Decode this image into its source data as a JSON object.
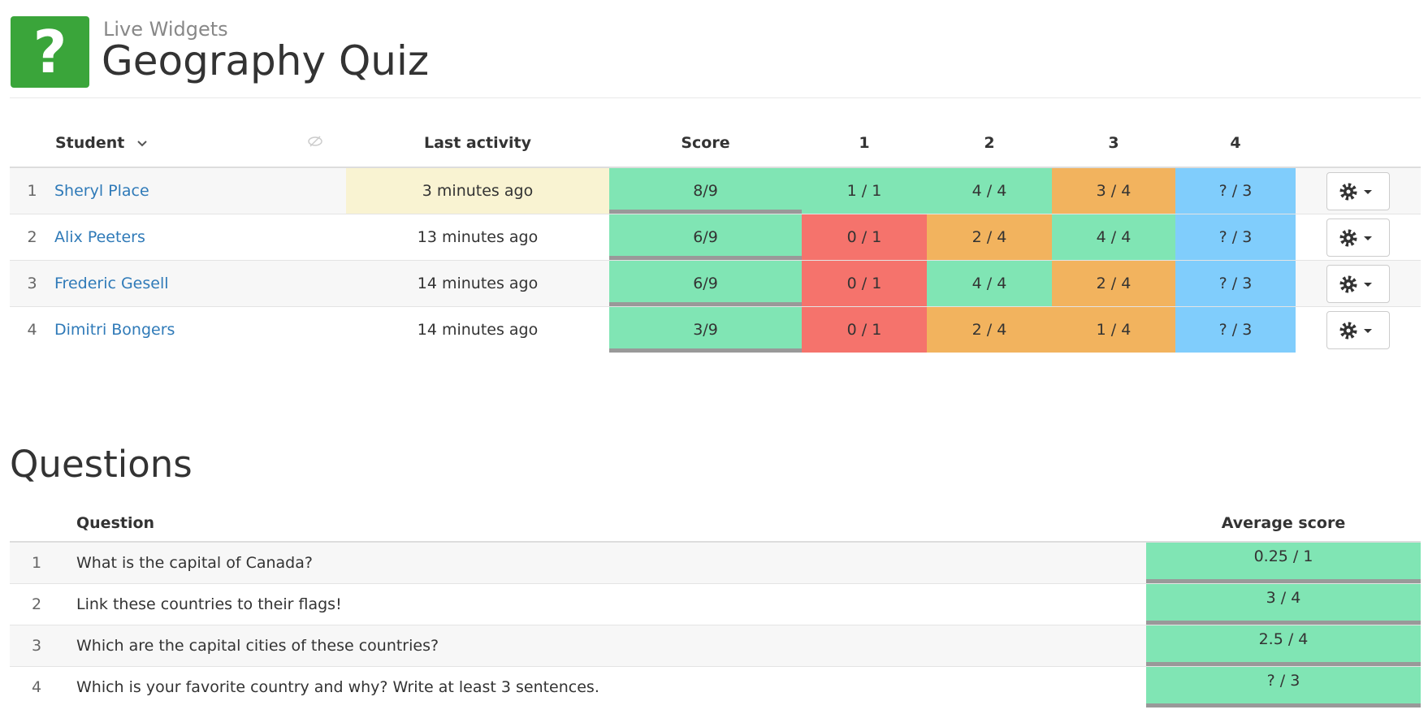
{
  "header": {
    "icon": "?",
    "subtitle": "Live Widgets",
    "title": "Geography Quiz"
  },
  "students_table": {
    "columns": [
      "Student",
      "Last activity",
      "Score",
      "1",
      "2",
      "3",
      "4"
    ],
    "rows": [
      {
        "index": "1",
        "name": "Sheryl Place",
        "last_activity": "3 minutes ago",
        "score": "8/9",
        "answers": [
          "1 / 1",
          "4 / 4",
          "3 / 4",
          "? / 3"
        ]
      },
      {
        "index": "2",
        "name": "Alix Peeters",
        "last_activity": "13 minutes ago",
        "score": "6/9",
        "answers": [
          "0 / 1",
          "2 / 4",
          "4 / 4",
          "? / 3"
        ]
      },
      {
        "index": "3",
        "name": "Frederic Gesell",
        "last_activity": "14 minutes ago",
        "score": "6/9",
        "answers": [
          "0 / 1",
          "4 / 4",
          "2 / 4",
          "? / 3"
        ]
      },
      {
        "index": "4",
        "name": "Dimitri Bongers",
        "last_activity": "14 minutes ago",
        "score": "3/9",
        "answers": [
          "0 / 1",
          "2 / 4",
          "1 / 4",
          "? / 3"
        ]
      }
    ]
  },
  "questions": {
    "title": "Questions",
    "columns": [
      "Question",
      "Average score"
    ],
    "rows": [
      {
        "index": "1",
        "text": "What is the capital of Canada?",
        "average": "0.25 / 1"
      },
      {
        "index": "2",
        "text": "Link these countries to their flags!",
        "average": "3 / 4"
      },
      {
        "index": "3",
        "text": "Which are the capital cities of these countries?",
        "average": "2.5 / 4"
      },
      {
        "index": "4",
        "text": "Which is your favorite country and why? Write at least 3 sentences.",
        "average": "? / 3"
      }
    ]
  }
}
